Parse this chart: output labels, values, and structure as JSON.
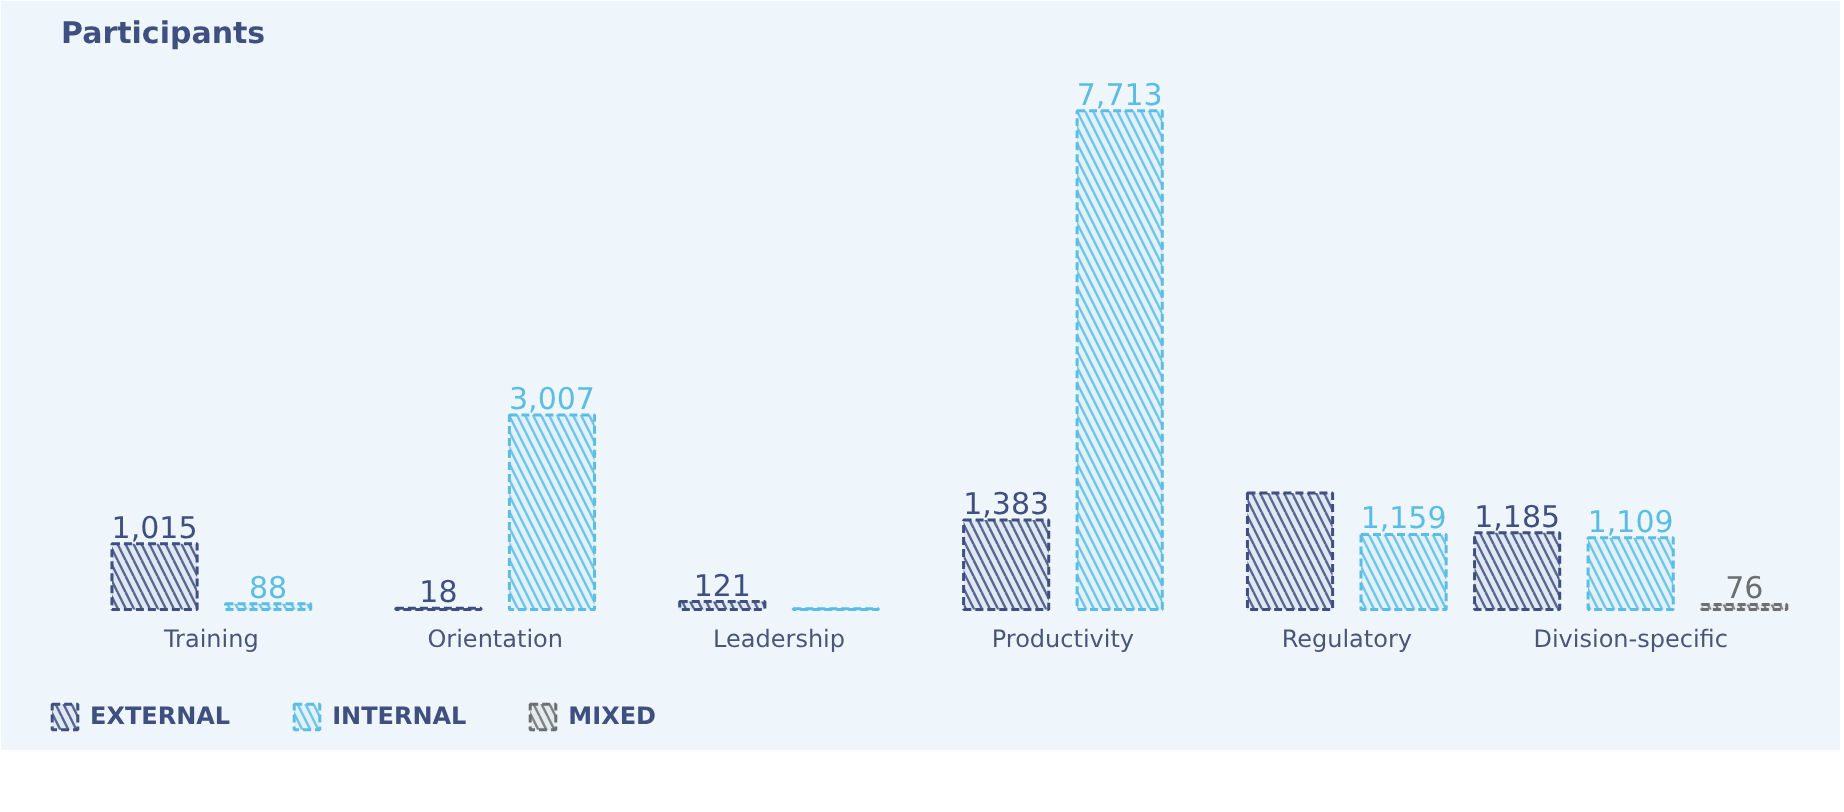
{
  "chart_data": {
    "type": "bar",
    "title": "Participants",
    "categories": [
      "Training",
      "Orientation",
      "Leadership",
      "Productivity",
      "Regulatory",
      "Division-specific"
    ],
    "series": [
      {
        "name": "EXTERNAL",
        "color": "#3f4f80",
        "values": [
          1015,
          18,
          121,
          1383,
          1800,
          1185
        ],
        "value_labels": [
          "1,015",
          "18",
          "121",
          "1,383",
          null,
          "1,185"
        ]
      },
      {
        "name": "INTERNAL",
        "color": "#5bbde4",
        "values": [
          88,
          3007,
          10,
          7713,
          1159,
          1109
        ],
        "value_labels": [
          "88",
          "3,007",
          null,
          "7,713",
          "1,159",
          "1,109"
        ]
      },
      {
        "name": "MIXED",
        "color": "#6d6e70",
        "values": [
          null,
          null,
          null,
          null,
          null,
          76
        ],
        "value_labels": [
          null,
          null,
          null,
          null,
          null,
          "76"
        ]
      }
    ],
    "legend": "bottom left"
  }
}
